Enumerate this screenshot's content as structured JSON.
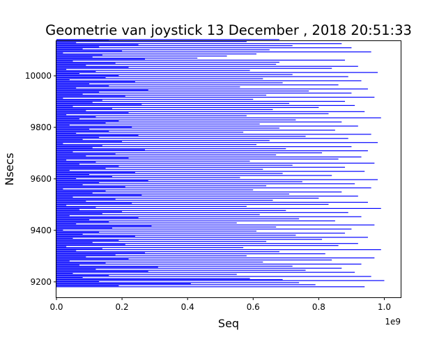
{
  "chart_data": {
    "type": "bar",
    "orientation": "horizontal",
    "title": "Geometrie van joystick 13 December , 2018  20:51:33",
    "xlabel": "Seq",
    "ylabel": "Nsecs",
    "x_offset_text": "1e9",
    "xlim": [
      0,
      1.05
    ],
    "ylim": [
      9140,
      10135
    ],
    "x_ticks": [
      0.0,
      0.2,
      0.4,
      0.6,
      0.8,
      1.0
    ],
    "x_tick_labels": [
      "0.0",
      "0.2",
      "0.4",
      "0.6",
      "0.8",
      "1.0"
    ],
    "y_ticks": [
      9200,
      9400,
      9600,
      9800,
      10000
    ],
    "y_tick_labels": [
      "9200",
      "9400",
      "9600",
      "9800",
      "10000"
    ],
    "bar_color": "#0000ff",
    "grid": false,
    "legend": "none",
    "series": [
      {
        "nsecs_start": 9181,
        "nsecs_step": 4,
        "values": [
          0.94,
          0.19,
          0.79,
          0.41,
          0.74,
          0.13,
          1.0,
          0.69,
          0.59,
          0.08,
          0.96,
          0.16,
          0.55,
          0.05,
          0.91,
          0.28,
          0.76,
          0.12,
          0.87,
          0.31,
          0.72,
          0.07,
          0.93,
          0.15,
          0.63,
          0.04,
          0.84,
          0.22,
          0.97,
          0.09,
          0.58,
          0.18,
          0.82,
          0.27,
          0.68,
          0.06,
          0.99,
          0.14,
          0.57,
          0.03,
          0.86,
          0.21,
          0.92,
          0.11,
          0.64,
          0.19,
          0.81,
          0.05,
          0.95,
          0.24,
          0.73,
          0.08,
          0.88,
          0.13,
          0.61,
          0.02,
          0.9,
          0.17,
          0.67,
          0.29,
          0.97,
          0.06,
          0.55,
          0.16,
          0.85,
          0.1,
          0.74,
          0.25,
          0.93,
          0.04,
          0.62,
          0.14,
          0.89,
          0.2,
          0.7,
          0.07,
          0.99,
          0.12,
          0.58,
          0.03,
          0.83,
          0.23,
          0.95,
          0.09,
          0.66,
          0.18,
          0.8,
          0.05,
          0.92,
          0.26,
          0.71,
          0.11,
          0.87,
          0.15,
          0.6,
          0.02,
          0.96,
          0.21,
          0.64,
          0.08,
          0.91,
          0.13,
          0.75,
          0.28,
          0.98,
          0.06,
          0.56,
          0.17,
          0.84,
          0.1,
          0.69,
          0.24,
          0.94,
          0.04,
          0.63,
          0.15,
          0.88,
          0.19,
          0.72,
          0.07,
          0.97,
          0.12,
          0.59,
          0.03,
          0.86,
          0.22,
          0.93,
          0.09,
          0.67,
          0.18,
          0.81,
          0.05,
          0.95,
          0.27,
          0.7,
          0.11,
          0.9,
          0.14,
          0.61,
          0.02,
          0.98,
          0.2,
          0.65,
          0.08,
          0.89,
          0.13,
          0.76,
          0.25,
          0.96,
          0.06,
          0.57,
          0.16,
          0.85,
          0.1,
          0.68,
          0.23,
          0.92,
          0.04,
          0.62,
          0.15,
          0.87,
          0.19,
          0.73,
          0.07,
          0.99,
          0.12,
          0.58,
          0.03,
          0.83,
          0.22,
          0.94,
          0.09,
          0.66,
          0.17,
          0.8,
          0.05,
          0.91,
          0.26,
          0.71,
          0.11,
          0.88,
          0.14,
          0.6,
          0.02,
          0.97,
          0.21,
          0.64,
          0.08,
          0.9,
          0.13,
          0.77,
          0.28,
          0.95,
          0.06,
          0.56,
          0.16,
          0.86,
          0.1,
          0.69,
          0.24,
          0.93,
          0.04,
          0.63,
          0.15,
          0.89,
          0.19,
          0.72,
          0.07,
          0.98,
          0.12,
          0.59,
          0.03,
          0.84,
          0.22,
          0.92,
          0.09,
          0.67,
          0.18,
          0.68,
          0.05,
          0.88,
          0.27,
          0.43,
          0.11,
          0.52,
          0.14,
          0.61,
          0.02,
          0.96,
          0.2,
          0.65,
          0.08,
          0.9,
          0.13,
          0.72,
          0.25,
          0.87,
          0.06,
          0.58,
          0.16,
          0.68
        ]
      }
    ]
  }
}
